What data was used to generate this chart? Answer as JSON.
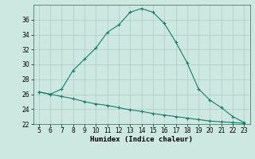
{
  "xlabel": "Humidex (Indice chaleur)",
  "background_color": "#cce8e0",
  "grid_color": "#aaccc4",
  "line_color": "#1a7a6a",
  "x": [
    5,
    6,
    7,
    8,
    9,
    10,
    11,
    12,
    13,
    14,
    15,
    16,
    17,
    18,
    19,
    20,
    21,
    22,
    23
  ],
  "y_curve": [
    26.3,
    26.0,
    26.7,
    29.2,
    30.7,
    32.2,
    34.3,
    35.3,
    37.0,
    37.5,
    37.0,
    35.5,
    33.0,
    30.2,
    26.7,
    25.2,
    24.2,
    23.0,
    22.2
  ],
  "y_line": [
    26.3,
    26.0,
    25.7,
    25.4,
    25.0,
    24.7,
    24.5,
    24.2,
    23.9,
    23.7,
    23.4,
    23.2,
    23.0,
    22.8,
    22.6,
    22.4,
    22.3,
    22.2,
    22.1
  ],
  "xlim": [
    4.5,
    23.5
  ],
  "ylim": [
    22,
    38
  ],
  "yticks": [
    22,
    24,
    26,
    28,
    30,
    32,
    34,
    36
  ],
  "xticks": [
    5,
    6,
    7,
    8,
    9,
    10,
    11,
    12,
    13,
    14,
    15,
    16,
    17,
    18,
    19,
    20,
    21,
    22,
    23
  ],
  "tick_fontsize": 5.5,
  "xlabel_fontsize": 6.5,
  "marker": "+",
  "markersize": 3,
  "linewidth": 0.8
}
